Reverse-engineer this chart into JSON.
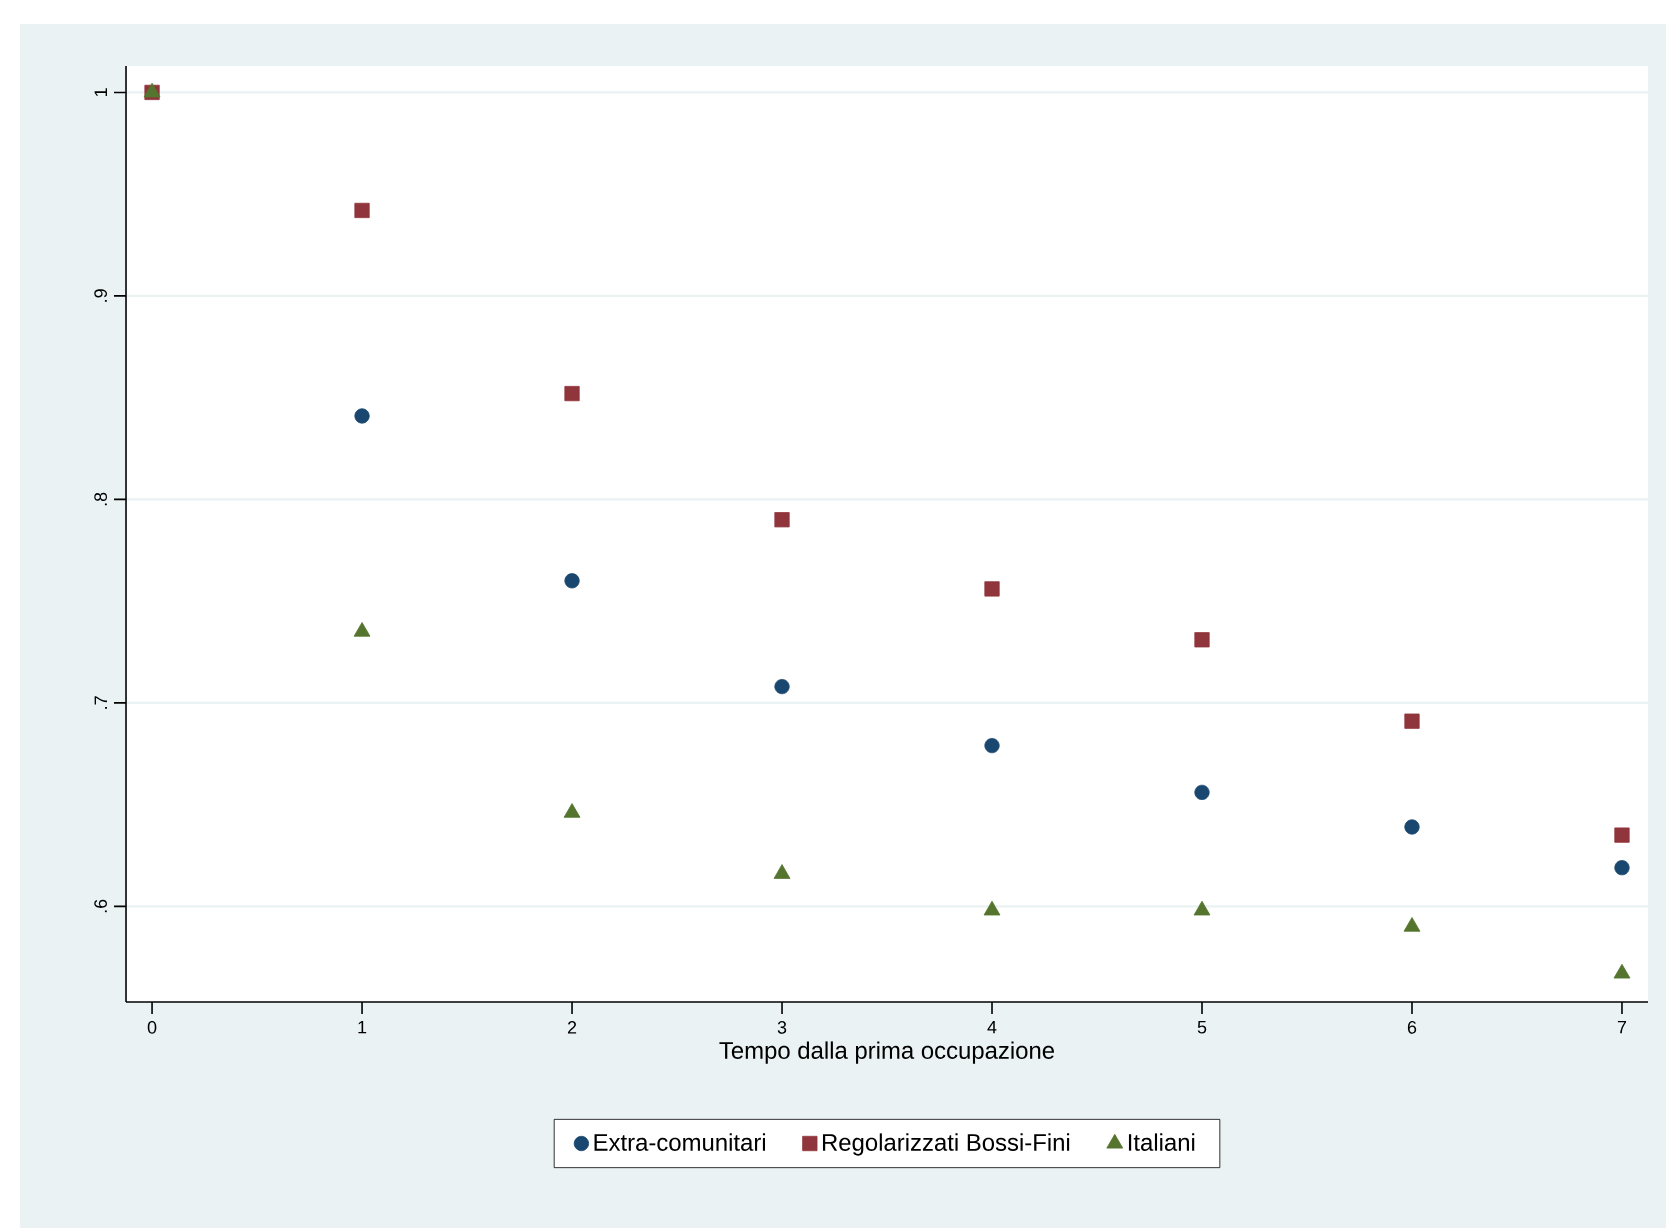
{
  "chart_data": {
    "type": "scatter",
    "xlabel": "Tempo dalla prima occupazione",
    "x": [
      0,
      1,
      2,
      3,
      4,
      5,
      6,
      7
    ],
    "series": [
      {
        "name": "Extra-comunitari",
        "color": "#1a476f",
        "marker": "circle",
        "values": [
          null,
          0.841,
          0.76,
          0.708,
          0.679,
          0.656,
          0.639,
          0.619
        ]
      },
      {
        "name": "Regolarizzati Bossi-Fini",
        "color": "#90353b",
        "marker": "square",
        "values": [
          1,
          0.942,
          0.852,
          0.79,
          0.756,
          0.731,
          0.691,
          0.635
        ]
      },
      {
        "name": "Italiani",
        "color": "#55752f",
        "marker": "triangle",
        "values": [
          1,
          0.735,
          0.646,
          0.616,
          0.598,
          0.598,
          0.59,
          0.567
        ]
      }
    ],
    "xlim": [
      -0.124,
      7.124
    ],
    "ylim": [
      0.553,
      1.013
    ],
    "xticks": [
      0,
      1,
      2,
      3,
      4,
      5,
      6,
      7
    ],
    "yticks": [
      {
        "value": 0.6,
        "label": ".6"
      },
      {
        "value": 0.7,
        "label": ".7"
      },
      {
        "value": 0.8,
        "label": ".8"
      },
      {
        "value": 0.9,
        "label": ".9"
      },
      1
    ],
    "grid": "y",
    "legend": "bottom"
  }
}
